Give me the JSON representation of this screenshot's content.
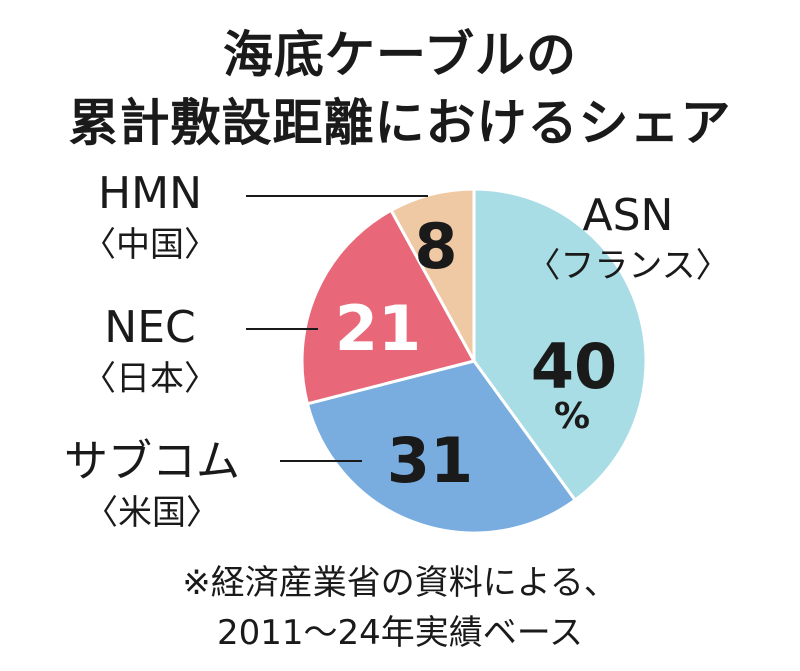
{
  "chart_data": {
    "type": "pie",
    "title": [
      "海底ケーブルの",
      "累計敷設距離におけるシェア"
    ],
    "slices": [
      {
        "name": "ASN",
        "country": "〈フランス〉",
        "value": 40,
        "value_label": "40",
        "unit": "%",
        "color": "#a9dde6"
      },
      {
        "name": "サブコム",
        "country": "〈米国〉",
        "value": 31,
        "value_label": "31",
        "color": "#79addf"
      },
      {
        "name": "NEC",
        "country": "〈日本〉",
        "value": 21,
        "value_label": "21",
        "color": "#e8687a"
      },
      {
        "name": "HMN",
        "country": "〈中国〉",
        "value": 8,
        "value_label": "8",
        "color": "#efc9a4"
      }
    ],
    "note": [
      "※経済産業省の資料による、",
      "2011～24年実績ベース"
    ]
  }
}
